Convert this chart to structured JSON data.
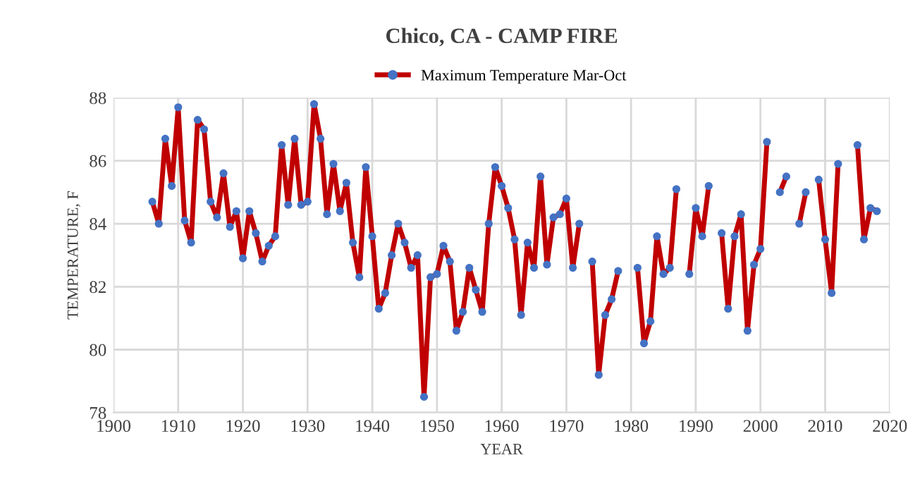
{
  "chart_data": {
    "type": "line",
    "title": "Chico, CA - CAMP FIRE",
    "xlabel": "YEAR",
    "ylabel": "TEMPERATURE, F",
    "x": [
      1906,
      1907,
      1908,
      1909,
      1910,
      1911,
      1912,
      1913,
      1914,
      1915,
      1916,
      1917,
      1918,
      1919,
      1920,
      1921,
      1922,
      1923,
      1924,
      1925,
      1926,
      1927,
      1928,
      1929,
      1930,
      1931,
      1932,
      1933,
      1934,
      1935,
      1936,
      1937,
      1938,
      1939,
      1940,
      1941,
      1942,
      1943,
      1944,
      1945,
      1946,
      1947,
      1948,
      1949,
      1950,
      1951,
      1952,
      1953,
      1954,
      1955,
      1956,
      1957,
      1958,
      1959,
      1960,
      1961,
      1962,
      1963,
      1964,
      1965,
      1966,
      1967,
      1968,
      1969,
      1970,
      1971,
      1972,
      1973,
      1974,
      1975,
      1976,
      1977,
      1978,
      1979,
      1980,
      1981,
      1982,
      1983,
      1984,
      1985,
      1986,
      1987,
      1988,
      1989,
      1990,
      1991,
      1992,
      1993,
      1994,
      1995,
      1996,
      1997,
      1998,
      1999,
      2000,
      2001,
      2002,
      2003,
      2004,
      2005,
      2006,
      2007,
      2008,
      2009,
      2010,
      2011,
      2012,
      2013,
      2014,
      2015,
      2016,
      2017,
      2018
    ],
    "series": [
      {
        "name": "Maximum Temperature Mar-Oct",
        "color": "#c00000",
        "colors": [
          "#4472c4",
          "#4472c4",
          "#4472c4",
          "#4472c4",
          "#4472c4",
          "#4472c4",
          "#4472c4",
          "#4472c4",
          "#4472c4",
          "#4472c4",
          "#4472c4",
          "#4472c4",
          "#4472c4",
          "#4472c4",
          "#4472c4",
          "#4472c4",
          "#4472c4",
          "#4472c4",
          "#4472c4",
          "#4472c4",
          "#4472c4",
          "#4472c4",
          "#4472c4",
          "#4472c4",
          "#4472c4",
          "#4472c4",
          "#4472c4",
          "#4472c4",
          "#4472c4",
          "#4472c4",
          "#4472c4",
          "#4472c4",
          "#4472c4",
          "#4472c4",
          "#4472c4",
          "#4472c4",
          "#4472c4",
          "#4472c4",
          "#4472c4",
          "#4472c4",
          "#4472c4",
          "#4472c4",
          "#4472c4",
          "#4472c4",
          "#4472c4",
          "#4472c4",
          "#4472c4",
          "#4472c4",
          "#4472c4",
          "#4472c4",
          "#4472c4",
          "#4472c4",
          "#4472c4",
          "#4472c4",
          "#4472c4",
          "#4472c4",
          "#4472c4",
          "#4472c4",
          "#4472c4",
          "#4472c4",
          "#4472c4",
          "#4472c4",
          "#4472c4",
          "#4472c4",
          "#4472c4",
          "#4472c4",
          "#4472c4",
          "#4472c4",
          "#4472c4",
          "#4472c4",
          "#4472c4",
          "#4472c4",
          "#4472c4",
          "#4472c4",
          "#4472c4",
          "#4472c4",
          "#4472c4",
          "#4472c4",
          "#4472c4",
          "#4472c4",
          "#4472c4",
          "#4472c4",
          "#4472c4",
          "#4472c4",
          "#4472c4",
          "#4472c4",
          "#4472c4",
          "#4472c4",
          "#4472c4",
          "#4472c4",
          "#4472c4",
          "#4472c4",
          "#4472c4",
          "#4472c4",
          "#4472c4",
          "#4472c4",
          "#4472c4",
          "#4472c4",
          "#4472c4",
          "#4472c4",
          "#4472c4",
          "#4472c4",
          "#4472c4",
          "#4472c4",
          "#4472c4",
          "#4472c4",
          "#4472c4",
          "#4472c4",
          "#4472c4",
          "#4472c4",
          "#4472c4",
          "#4472c4",
          "#4472c4"
        ],
        "values": [
          84.7,
          84.0,
          86.7,
          85.2,
          87.7,
          84.1,
          83.4,
          87.3,
          87.0,
          84.7,
          84.2,
          85.6,
          83.9,
          84.4,
          82.9,
          84.4,
          83.7,
          82.8,
          83.3,
          83.6,
          86.5,
          84.6,
          86.7,
          84.6,
          84.7,
          87.8,
          86.7,
          84.3,
          85.9,
          84.4,
          85.3,
          83.4,
          82.3,
          85.8,
          83.6,
          81.3,
          81.8,
          83.0,
          84.0,
          83.4,
          82.6,
          83.0,
          78.5,
          82.3,
          82.4,
          83.3,
          82.8,
          80.6,
          81.2,
          82.6,
          81.9,
          81.2,
          84.0,
          85.8,
          85.2,
          84.5,
          83.5,
          81.1,
          83.4,
          82.6,
          85.5,
          82.7,
          84.2,
          84.3,
          84.8,
          82.6,
          84.0,
          null,
          82.8,
          79.2,
          81.1,
          81.6,
          82.5,
          null,
          null,
          82.6,
          80.2,
          80.9,
          83.6,
          82.4,
          82.6,
          85.1,
          null,
          82.4,
          84.5,
          83.6,
          85.2,
          null,
          83.7,
          81.3,
          83.6,
          84.3,
          80.6,
          82.7,
          83.2,
          86.6,
          null,
          85.0,
          85.5,
          null,
          84.0,
          85.0,
          null,
          85.4,
          83.5,
          81.8,
          85.9,
          null,
          null,
          86.5,
          83.5,
          84.5,
          84.4
        ]
      }
    ],
    "xlim": [
      1900,
      2020
    ],
    "xticks": [
      1900,
      1910,
      1920,
      1930,
      1940,
      1950,
      1960,
      1970,
      1980,
      1990,
      2000,
      2010,
      2020
    ],
    "ylim": [
      78,
      88
    ],
    "yticks": [
      78,
      80,
      82,
      84,
      86,
      88
    ],
    "grid": true,
    "legend": "top",
    "marker": "circle",
    "line_style": "solid"
  }
}
